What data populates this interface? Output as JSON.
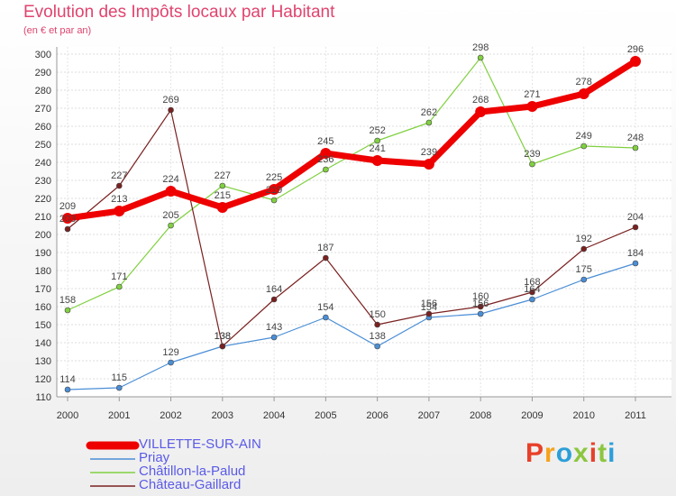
{
  "brand": {
    "logo": "Proxiti",
    "colors": [
      "#e8402a",
      "#f7a21b",
      "#2b9fd8",
      "#8cc63f",
      "#e8402a",
      "#8cc63f",
      "#2b9fd8"
    ]
  },
  "chart_data": {
    "type": "line",
    "title": "Evolution des Impôts locaux par Habitant",
    "subtitle": "(en € et par an)",
    "xlabel": "",
    "ylabel": "",
    "x": [
      "2000",
      "2001",
      "2002",
      "2003",
      "2004",
      "2005",
      "2006",
      "2007",
      "2008",
      "2009",
      "2010",
      "2011"
    ],
    "ylim": [
      110,
      300
    ],
    "yticks": [
      110,
      120,
      130,
      140,
      150,
      160,
      170,
      180,
      190,
      200,
      210,
      220,
      230,
      240,
      250,
      260,
      270,
      280,
      290,
      300
    ],
    "grid": "horizontal",
    "legend": "bottom-left",
    "series": [
      {
        "name": "VILLETTE-SUR-AIN",
        "color": "#ee0000",
        "values": [
          209,
          213,
          224,
          215,
          225,
          245,
          241,
          239,
          268,
          271,
          278,
          296
        ]
      },
      {
        "name": "Priay",
        "color": "#4a8ed6",
        "values": [
          114,
          115,
          129,
          138,
          143,
          154,
          138,
          154,
          156,
          164,
          175,
          184
        ]
      },
      {
        "name": "Châtillon-la-Palud",
        "color": "#80d040",
        "values": [
          158,
          171,
          205,
          227,
          219,
          236,
          252,
          262,
          298,
          239,
          249,
          248
        ]
      },
      {
        "name": "Château-Gaillard",
        "color": "#7a2020",
        "values": [
          203,
          227,
          269,
          138,
          164,
          187,
          150,
          156,
          160,
          168,
          192,
          204
        ]
      }
    ]
  }
}
